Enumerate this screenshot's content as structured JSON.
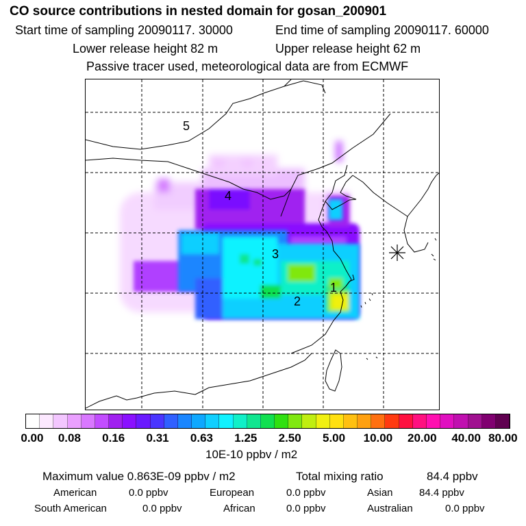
{
  "header": {
    "title": "CO  source contributions in nested domain for gosan_200901",
    "start_label": "Start time of sampling 20090117. 30000",
    "end_label": "End time of sampling 20090117. 60000",
    "lower_label": "Lower release height   82 m",
    "upper_label": "Upper release height   62 m",
    "tracer_label": "Passive tracer used, meteorological data are from ECMWF"
  },
  "map": {
    "region_labels": [
      "1",
      "2",
      "3",
      "4",
      "5"
    ],
    "receptor_marker": "asterisk-icon"
  },
  "colorbar": {
    "tick_labels": [
      "0.00",
      "0.08",
      "0.16",
      "0.31",
      "0.63",
      "1.25",
      "2.50",
      "5.00",
      "10.00",
      "20.00",
      "40.00",
      "80.00"
    ],
    "units": "10E-10 ppbv / m2",
    "colors": [
      "#ffffff",
      "#fce8ff",
      "#f3c6ff",
      "#eaa0ff",
      "#d978ff",
      "#c24dff",
      "#a020f0",
      "#8a10ff",
      "#6a1aff",
      "#4a35ff",
      "#3060ff",
      "#1a86ff",
      "#0fa8ff",
      "#10cfff",
      "#10f2ff",
      "#10f0c8",
      "#10e690",
      "#10e050",
      "#30e010",
      "#80e810",
      "#c0ee10",
      "#f0f010",
      "#ffe010",
      "#ffc010",
      "#ffa010",
      "#ff7010",
      "#ff3a10",
      "#ff1040",
      "#ff1080",
      "#ff10b0",
      "#e010c0",
      "#c010b0",
      "#a01090",
      "#800070",
      "#600050"
    ]
  },
  "stats": {
    "max_value": "Maximum value  0.863E-09 ppbv / m2",
    "total_mixing": "Total mixing ratio",
    "total_value": "84.4 ppbv",
    "regions": [
      {
        "name": "American",
        "value": "0.0 ppbv"
      },
      {
        "name": "European",
        "value": "0.0 ppbv"
      },
      {
        "name": "Asian",
        "value": "84.4 ppbv"
      },
      {
        "name": "South American",
        "value": "0.0 ppbv"
      },
      {
        "name": "African",
        "value": "0.0 ppbv"
      },
      {
        "name": "Australian",
        "value": "0.0 ppbv"
      }
    ]
  }
}
